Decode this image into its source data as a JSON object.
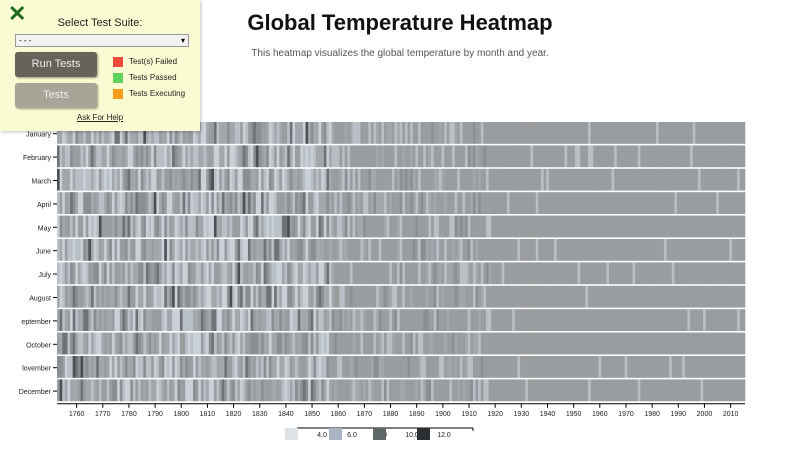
{
  "panel": {
    "close_icon": "close-x-icon",
    "suite_label": "Select Test Suite:",
    "suite_selected": "- - -",
    "run_label": "Run Tests",
    "tests_label": "Tests",
    "legend": [
      {
        "label": "Test(s) Failed",
        "color": "#f04a3c"
      },
      {
        "label": "Tests Passed",
        "color": "#5ed45e"
      },
      {
        "label": "Tests Executing",
        "color": "#f59e1b"
      }
    ],
    "help_label": "Ask For Help"
  },
  "chart_data": {
    "type": "heatmap",
    "title": "Global Temperature Heatmap",
    "subtitle": "This heatmap visualizes the global temperature by month and year.",
    "x_range": [
      1753,
      2015
    ],
    "x_ticks": [
      1760,
      1770,
      1780,
      1790,
      1800,
      1810,
      1820,
      1830,
      1840,
      1850,
      1860,
      1870,
      1880,
      1890,
      1900,
      1910,
      1920,
      1930,
      1940,
      1950,
      1960,
      1970,
      1980,
      1990,
      2000,
      2010
    ],
    "months": [
      "January",
      "February",
      "March",
      "April",
      "May",
      "June",
      "July",
      "August",
      "September",
      "October",
      "November",
      "December"
    ],
    "month_tick_labels": [
      "January",
      "February",
      "March",
      "April",
      "May",
      "June",
      "July",
      "August",
      "eptember",
      "October",
      "lovember",
      "December"
    ],
    "legend": {
      "thresholds": [
        "4.0",
        "6.0",
        "8.0",
        "10.0",
        "12.0"
      ],
      "colors": [
        "#dde3e7",
        "#a9b3c1",
        "#5f6769",
        "#2b2f31"
      ]
    },
    "cell_colors": [
      "#c9d0d8",
      "#b9bfc6",
      "#a3a7ab",
      "#9a9d9f",
      "#8c8f91",
      "#6e7375",
      "#4a4f51"
    ]
  }
}
